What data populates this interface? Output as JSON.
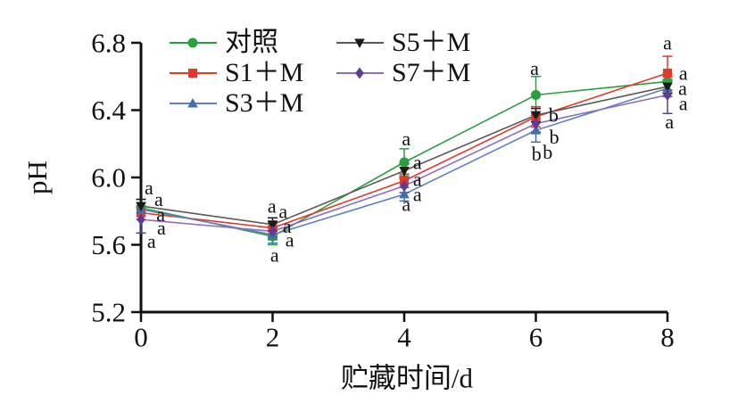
{
  "figure_title": "",
  "axes": {
    "y_label": "pH",
    "x_label": "贮藏时间/d",
    "y_tick_labels": [
      "5.2",
      "5.6",
      "6.0",
      "6.4",
      "6.8"
    ],
    "x_tick_labels": [
      "0",
      "2",
      "4",
      "6",
      "8"
    ],
    "axis_color": "#111111"
  },
  "chart_data": {
    "type": "line",
    "x": [
      0,
      2,
      4,
      6,
      8
    ],
    "xlabel": "贮藏时间/d",
    "ylabel": "pH",
    "xlim": [
      0,
      8
    ],
    "ylim": [
      5.2,
      6.8
    ],
    "grid": false,
    "legend_position": "top-inside-two-columns",
    "series": [
      {
        "name": "对照",
        "marker": "circle",
        "marker_color": "#2B9E3F",
        "line_color": "#2B9E3F",
        "values": [
          5.82,
          5.65,
          6.09,
          6.49,
          6.57
        ],
        "errors": [
          0.05,
          0.05,
          0.08,
          0.11,
          0.05
        ]
      },
      {
        "name": "S1＋M",
        "marker": "square",
        "marker_color": "#E6372A",
        "line_color": "#E6372A",
        "values": [
          5.79,
          5.7,
          5.98,
          6.36,
          6.62
        ],
        "errors": [
          0.04,
          0.04,
          0.04,
          0.06,
          0.1
        ]
      },
      {
        "name": "S3＋M",
        "marker": "triangle-up",
        "marker_color": "#3E6EB4",
        "line_color": "#5A82C4",
        "values": [
          5.81,
          5.66,
          5.9,
          6.28,
          6.53
        ],
        "errors": [
          0.04,
          0.05,
          0.04,
          0.07,
          0.05
        ]
      },
      {
        "name": "S5＋M",
        "marker": "triangle-down",
        "marker_color": "#1A1A1A",
        "line_color": "#595959",
        "values": [
          5.83,
          5.72,
          6.04,
          6.37,
          6.54
        ],
        "errors": [
          0.04,
          0.04,
          0.04,
          0.04,
          0.04
        ]
      },
      {
        "name": "S7＋M",
        "marker": "diamond",
        "marker_color": "#5C3D96",
        "line_color": "#8C6EBE",
        "values": [
          5.75,
          5.68,
          5.95,
          6.32,
          6.49
        ],
        "errors": [
          0.08,
          0.05,
          0.04,
          0.05,
          0.11
        ]
      }
    ],
    "significance_letters": [
      {
        "x": 0.12,
        "ph": 5.94,
        "text": "a"
      },
      {
        "x": 0.27,
        "ph": 5.87,
        "text": "a"
      },
      {
        "x": 0.3,
        "ph": 5.78,
        "text": "a"
      },
      {
        "x": 0.31,
        "ph": 5.7,
        "text": "a"
      },
      {
        "x": 0.16,
        "ph": 5.62,
        "text": "a"
      },
      {
        "x": 1.99,
        "ph": 5.83,
        "text": "a"
      },
      {
        "x": 2.16,
        "ph": 5.8,
        "text": "a"
      },
      {
        "x": 2.22,
        "ph": 5.71,
        "text": "a"
      },
      {
        "x": 2.26,
        "ph": 5.63,
        "text": "a"
      },
      {
        "x": 2.03,
        "ph": 5.54,
        "text": "a"
      },
      {
        "x": 4.03,
        "ph": 6.23,
        "text": "a"
      },
      {
        "x": 4.2,
        "ph": 6.09,
        "text": "a"
      },
      {
        "x": 4.2,
        "ph": 5.99,
        "text": "a"
      },
      {
        "x": 4.2,
        "ph": 5.9,
        "text": "a"
      },
      {
        "x": 4.03,
        "ph": 5.84,
        "text": "a"
      },
      {
        "x": 5.98,
        "ph": 6.65,
        "text": "a"
      },
      {
        "x": 6.27,
        "ph": 6.37,
        "text": "b"
      },
      {
        "x": 6.28,
        "ph": 6.24,
        "text": "b"
      },
      {
        "x": 6.18,
        "ph": 6.15,
        "text": "b"
      },
      {
        "x": 6.01,
        "ph": 6.14,
        "text": "b"
      },
      {
        "x": 8.0,
        "ph": 6.8,
        "text": "a"
      },
      {
        "x": 8.24,
        "ph": 6.62,
        "text": "a"
      },
      {
        "x": 8.23,
        "ph": 6.53,
        "text": "a"
      },
      {
        "x": 8.24,
        "ph": 6.44,
        "text": "a"
      },
      {
        "x": 8.03,
        "ph": 6.33,
        "text": "a"
      }
    ],
    "letter_color": "#111111"
  }
}
